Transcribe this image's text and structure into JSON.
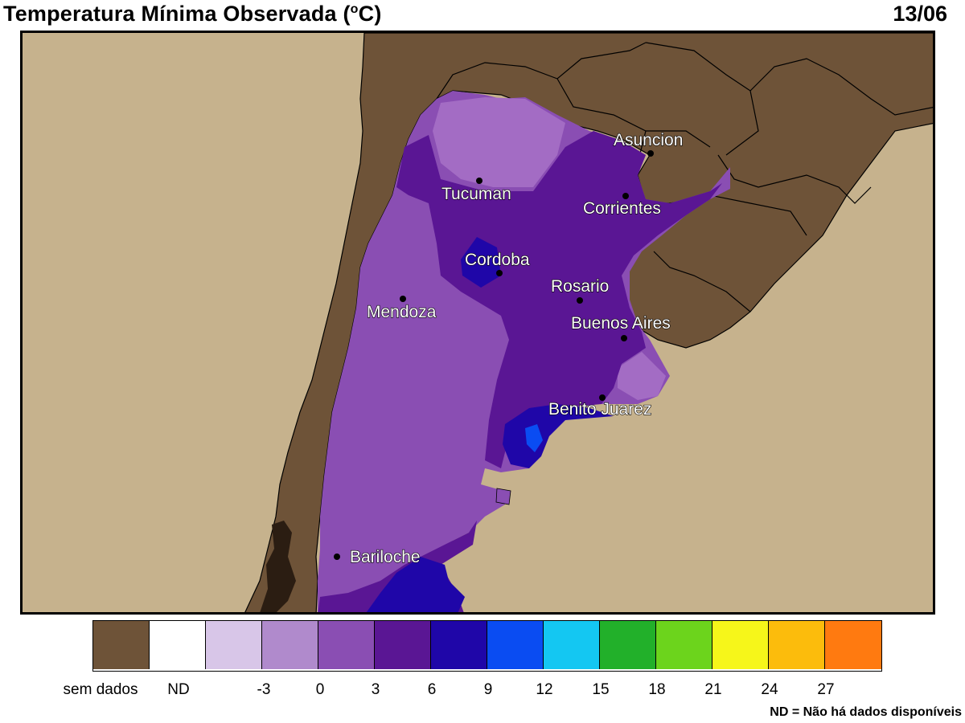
{
  "header": {
    "title_pre": "Temperatura Mínima Observada (",
    "title_sup": "o",
    "title_post": "C)",
    "date": "13/06"
  },
  "map": {
    "ocean_color": "#c6b28d",
    "land_nodata_color": "#6e5338",
    "cities": [
      {
        "name": "Asuncion"
      },
      {
        "name": "Tucuman"
      },
      {
        "name": "Corrientes"
      },
      {
        "name": "Cordoba"
      },
      {
        "name": "Rosario"
      },
      {
        "name": "Mendoza"
      },
      {
        "name": "Buenos Aires"
      },
      {
        "name": "Benito Juarez"
      },
      {
        "name": "Bariloche"
      }
    ]
  },
  "legend": {
    "swatches": [
      {
        "label": "sem dados",
        "color": "#6e5338"
      },
      {
        "label": "ND",
        "color": "#ffffff"
      },
      {
        "label": "",
        "color": "#d8c6e8"
      },
      {
        "label": "-3",
        "color": "#b08acc"
      },
      {
        "label": "0",
        "color": "#8a4eb3"
      },
      {
        "label": "3",
        "color": "#5a1694"
      },
      {
        "label": "6",
        "color": "#1f06a8"
      },
      {
        "label": "9",
        "color": "#0a4cf2"
      },
      {
        "label": "12",
        "color": "#14c7f2"
      },
      {
        "label": "15",
        "color": "#22b02a"
      },
      {
        "label": "18",
        "color": "#6cd41c"
      },
      {
        "label": "21",
        "color": "#f6f61a"
      },
      {
        "label": "24",
        "color": "#fcbc0c"
      },
      {
        "label": "27",
        "color": "#ff7a10"
      }
    ],
    "tick_labels": [
      "sem dados",
      "ND",
      "-3",
      "0",
      "3",
      "6",
      "9",
      "12",
      "15",
      "18",
      "21",
      "24",
      "27"
    ],
    "footnote": "ND = Não há dados disponíveis"
  }
}
